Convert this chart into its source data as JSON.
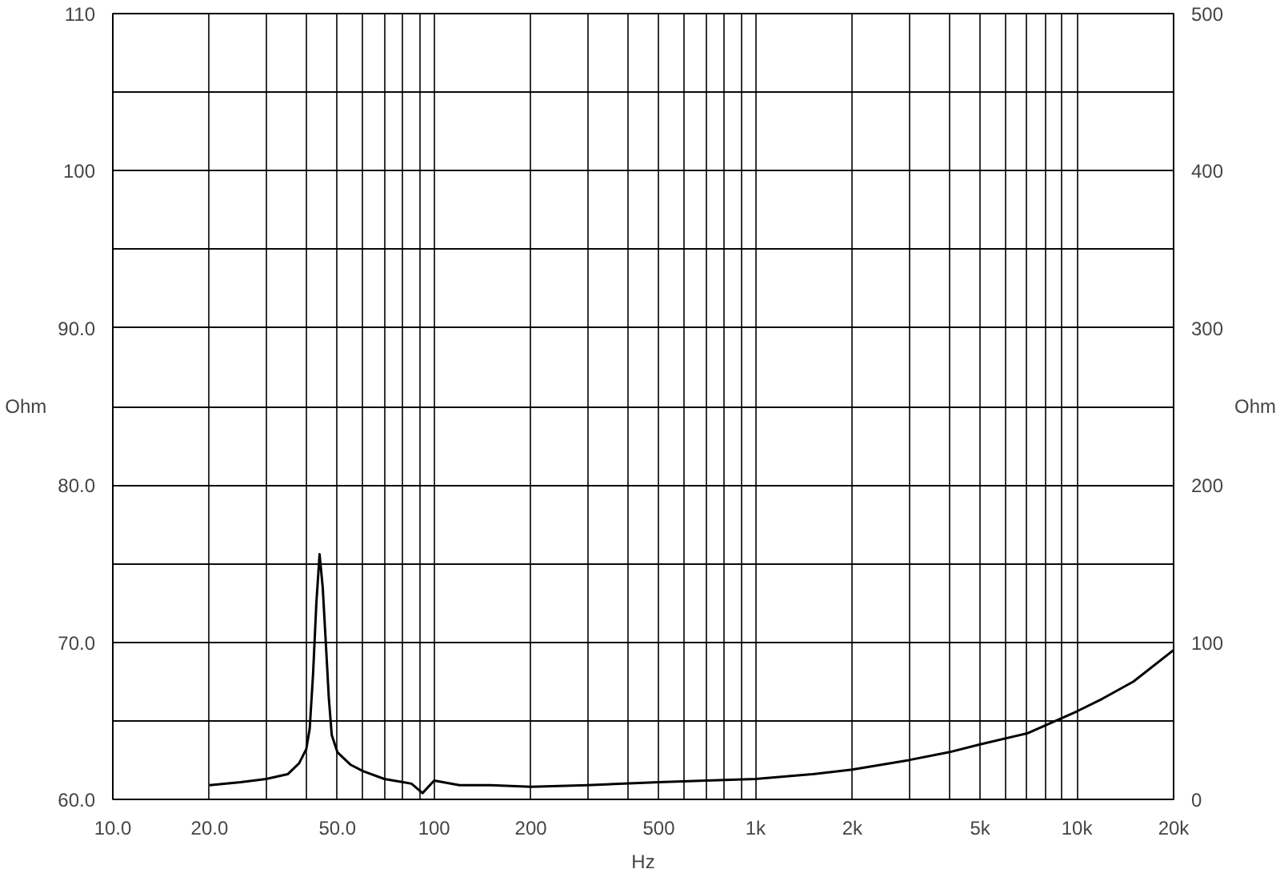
{
  "chart_data": {
    "type": "line",
    "xlabel": "Hz",
    "ylabel": "Ohm",
    "y2label": "Ohm",
    "log": "x",
    "grid": true,
    "marker": "none",
    "line_style": "solid",
    "xlim": [
      10,
      20000
    ],
    "xticks": [
      {
        "value": 10,
        "label": "10.0"
      },
      {
        "value": 20,
        "label": "20.0"
      },
      {
        "value": 30,
        "label": null
      },
      {
        "value": 40,
        "label": null
      },
      {
        "value": 50,
        "label": "50.0"
      },
      {
        "value": 60,
        "label": null
      },
      {
        "value": 70,
        "label": null
      },
      {
        "value": 80,
        "label": null
      },
      {
        "value": 90,
        "label": null
      },
      {
        "value": 100,
        "label": "100"
      },
      {
        "value": 200,
        "label": "200"
      },
      {
        "value": 300,
        "label": null
      },
      {
        "value": 400,
        "label": null
      },
      {
        "value": 500,
        "label": "500"
      },
      {
        "value": 600,
        "label": null
      },
      {
        "value": 700,
        "label": null
      },
      {
        "value": 800,
        "label": null
      },
      {
        "value": 900,
        "label": null
      },
      {
        "value": 1000,
        "label": "1k"
      },
      {
        "value": 2000,
        "label": "2k"
      },
      {
        "value": 3000,
        "label": null
      },
      {
        "value": 4000,
        "label": null
      },
      {
        "value": 5000,
        "label": "5k"
      },
      {
        "value": 6000,
        "label": null
      },
      {
        "value": 7000,
        "label": null
      },
      {
        "value": 8000,
        "label": null
      },
      {
        "value": 9000,
        "label": null
      },
      {
        "value": 10000,
        "label": "10k"
      },
      {
        "value": 20000,
        "label": "20k"
      }
    ],
    "ylim": [
      60,
      110
    ],
    "yticks": [
      {
        "value": 60,
        "label": "60.0"
      },
      {
        "value": 65,
        "label": null
      },
      {
        "value": 70,
        "label": "70.0"
      },
      {
        "value": 75,
        "label": null
      },
      {
        "value": 80,
        "label": "80.0"
      },
      {
        "value": 85,
        "label": null
      },
      {
        "value": 90,
        "label": "90.0"
      },
      {
        "value": 95,
        "label": null
      },
      {
        "value": 100,
        "label": "100"
      },
      {
        "value": 105,
        "label": null
      },
      {
        "value": 110,
        "label": "110"
      }
    ],
    "y2lim": [
      0,
      500
    ],
    "y2ticks": [
      0,
      {
        "value": 50,
        "label": null
      },
      100,
      {
        "value": 150,
        "label": null
      },
      200,
      {
        "value": 250,
        "label": null
      },
      300,
      {
        "value": 350,
        "label": null
      },
      400,
      {
        "value": 450,
        "label": null
      },
      500
    ],
    "series": [
      {
        "color": "#000000",
        "x": [
          20,
          25,
          30,
          35,
          38,
          40,
          41,
          42,
          43,
          44,
          45,
          46,
          47,
          48,
          50,
          55,
          60,
          70,
          80,
          85,
          92,
          100,
          120,
          150,
          200,
          300,
          500,
          700,
          1000,
          1500,
          2000,
          3000,
          4000,
          5000,
          7000,
          10000,
          12000,
          15000,
          20000
        ],
        "values": [
          60.9,
          61.1,
          61.3,
          61.6,
          62.3,
          63.2,
          64.5,
          68,
          72.5,
          75.6,
          73.5,
          70,
          66.5,
          64.1,
          63.0,
          62.2,
          61.8,
          61.3,
          61.1,
          61.0,
          60.4,
          61.2,
          60.9,
          60.9,
          60.8,
          60.9,
          61.1,
          61.2,
          61.3,
          61.6,
          61.9,
          62.5,
          63.0,
          63.5,
          64.2,
          65.6,
          66.4,
          67.5,
          69.5
        ]
      }
    ]
  }
}
